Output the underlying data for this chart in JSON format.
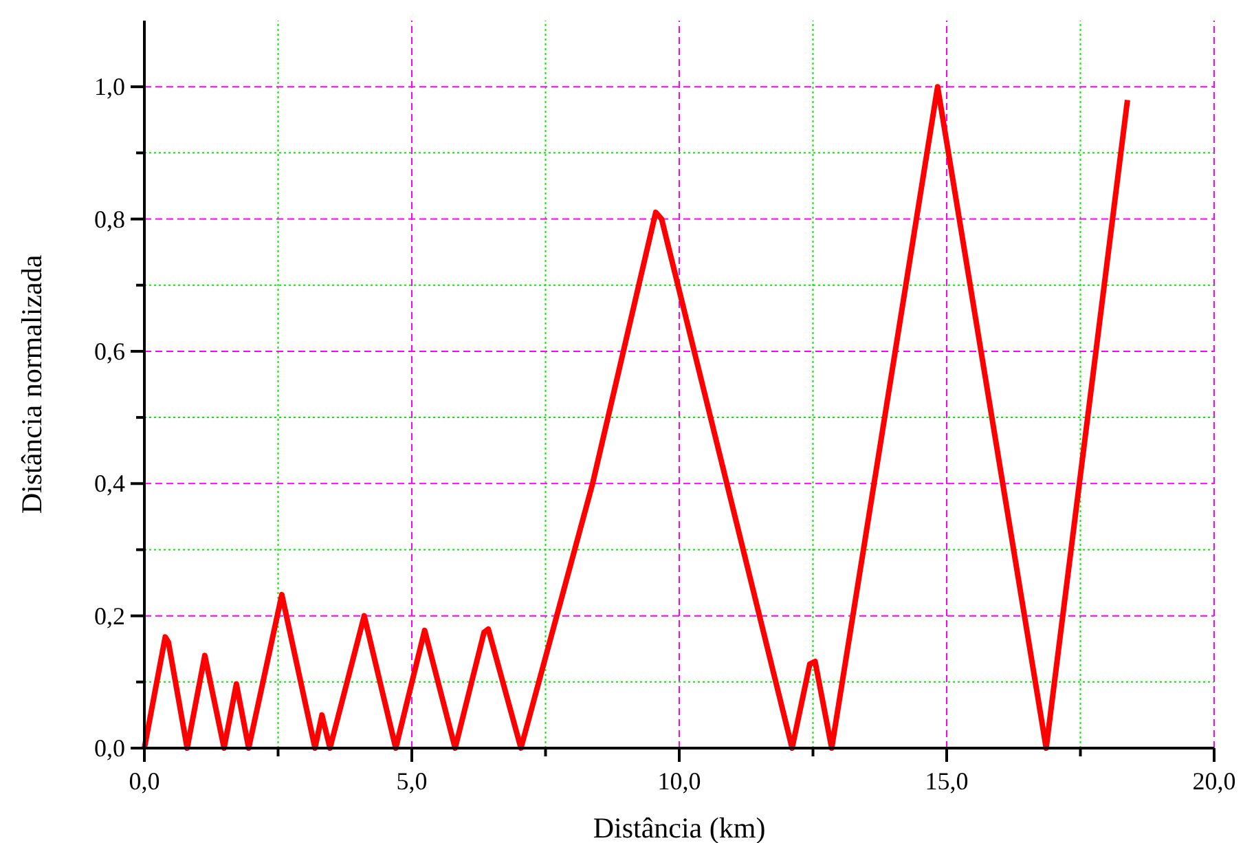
{
  "chart_data": {
    "type": "line",
    "xlabel": "Distância (km)",
    "ylabel": "Distância normalizada",
    "x": [
      0,
      0.39,
      0.45,
      0.8,
      1.13,
      1.49,
      1.72,
      1.95,
      2.57,
      3.19,
      3.32,
      3.47,
      4.11,
      4.7,
      5.24,
      5.81,
      6.35,
      6.43,
      7.04,
      8.38,
      9.56,
      9.67,
      12.11,
      12.44,
      12.54,
      12.85,
      14.83,
      16.86,
      18.38
    ],
    "series": [
      {
        "color": "#ff0000",
        "values": [
          0,
          0.168,
          0.16,
          0,
          0.14,
          0,
          0.097,
          0,
          0.232,
          0,
          0.05,
          0,
          0.2,
          0,
          0.178,
          0,
          0.175,
          0.18,
          0,
          0.4,
          0.81,
          0.8,
          0,
          0.127,
          0.131,
          0,
          1.0,
          0,
          0.98
        ]
      }
    ],
    "xlim": [
      0,
      20
    ],
    "ylim": [
      0,
      1.1
    ],
    "xticks": [
      {
        "value": 0,
        "label": "0,0"
      },
      {
        "value": 2.5,
        "label": null
      },
      {
        "value": 5,
        "label": "5,0"
      },
      {
        "value": 7.5,
        "label": null
      },
      {
        "value": 10,
        "label": "10,0"
      },
      {
        "value": 12.5,
        "label": null
      },
      {
        "value": 15,
        "label": "15,0"
      },
      {
        "value": 17.5,
        "label": null
      },
      {
        "value": 20,
        "label": "20,0"
      }
    ],
    "yticks": [
      {
        "value": 0,
        "label": "0,0"
      },
      {
        "value": 0.1,
        "label": null
      },
      {
        "value": 0.2,
        "label": "0,2"
      },
      {
        "value": 0.3,
        "label": null
      },
      {
        "value": 0.4,
        "label": "0,4"
      },
      {
        "value": 0.5,
        "label": null
      },
      {
        "value": 0.6,
        "label": "0,6"
      },
      {
        "value": 0.7,
        "label": null
      },
      {
        "value": 0.8,
        "label": "0,8"
      },
      {
        "value": 0.9,
        "label": null
      },
      {
        "value": 1.0,
        "label": "1,0"
      }
    ],
    "grid": true,
    "marker": "none",
    "line_style": "solid"
  }
}
